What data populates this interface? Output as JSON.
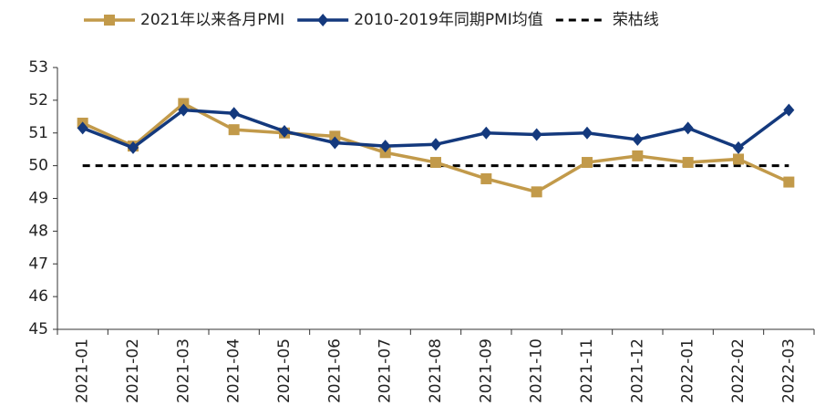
{
  "chart_data": {
    "type": "line",
    "categories": [
      "2021-01",
      "2021-02",
      "2021-03",
      "2021-04",
      "2021-05",
      "2021-06",
      "2021-07",
      "2021-08",
      "2021-09",
      "2021-10",
      "2021-11",
      "2021-12",
      "2022-01",
      "2022-02",
      "2022-03"
    ],
    "series": [
      {
        "name": "2021年以来各月PMI",
        "color": "#c29a4a",
        "marker": "square",
        "values": [
          51.3,
          50.6,
          51.9,
          51.1,
          51.0,
          50.9,
          50.4,
          50.1,
          49.6,
          49.2,
          50.1,
          50.3,
          50.1,
          50.2,
          49.5
        ]
      },
      {
        "name": "2010-2019年同期PMI均值",
        "color": "#14397d",
        "marker": "diamond",
        "values": [
          51.15,
          50.55,
          51.7,
          51.6,
          51.05,
          50.7,
          50.6,
          50.65,
          51.0,
          50.95,
          51.0,
          50.8,
          51.15,
          50.55,
          51.7
        ]
      }
    ],
    "reference_line": {
      "name": "荣枯线",
      "value": 50,
      "color": "#000000"
    },
    "ylim": [
      45,
      53
    ],
    "yticks": [
      45,
      46,
      47,
      48,
      49,
      50,
      51,
      52,
      53
    ],
    "grid": false
  }
}
